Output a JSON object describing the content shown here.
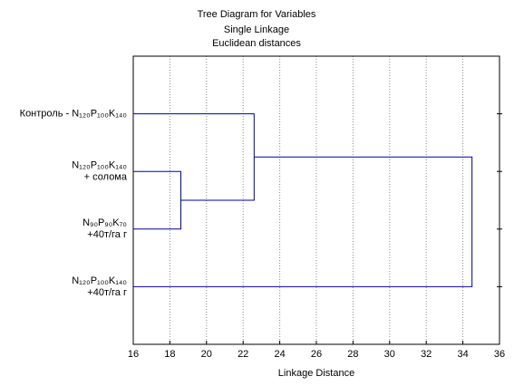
{
  "chart_data": {
    "type": "dendrogram",
    "title": [
      "Tree Diagram for  Variables",
      "Single Linkage",
      "Euclidean distances"
    ],
    "x_label": "Linkage Distance",
    "leaves": [
      [
        "Контроль - N₁₂₀P₁₀₀K₁₄₀"
      ],
      [
        "N₁₂₀P₁₀₀K₁₄₀",
        "+ солома"
      ],
      [
        "N₉₀P₉₀K₇₀",
        "+40т/га г"
      ],
      [
        "N₁₂₀P₁₀₀K₁₄₀",
        "+40т/га г"
      ]
    ],
    "merges": [
      {
        "children": [
          1,
          2
        ],
        "distance": 18.6
      },
      {
        "children": [
          0,
          4
        ],
        "distance": 22.6
      },
      {
        "children": [
          5,
          3
        ],
        "distance": 34.5
      }
    ],
    "color": "#00009c",
    "xlim": [
      16,
      36
    ],
    "xticks": [
      16,
      18,
      20,
      22,
      24,
      26,
      28,
      30,
      32,
      34,
      36
    ],
    "grid": true
  }
}
